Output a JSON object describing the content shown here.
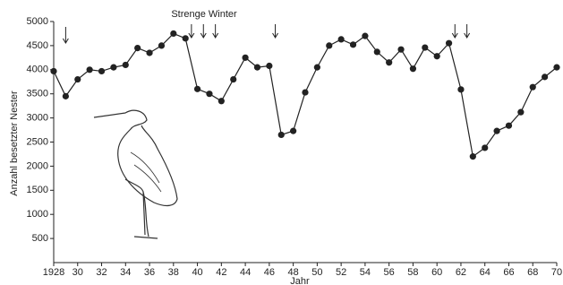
{
  "chart_data": {
    "type": "line",
    "annotation": "Strenge Winter",
    "hard_winters": [
      1929,
      1939.5,
      1940.5,
      1941.5,
      1946.5,
      1961.5,
      1962.5
    ],
    "x_label": "Jahr",
    "y_label": "Anzahl besetzter Nester",
    "x": [
      1928,
      1929,
      1930,
      1931,
      1932,
      1933,
      1934,
      1935,
      1936,
      1937,
      1938,
      1939,
      1940,
      1941,
      1942,
      1943,
      1944,
      1945,
      1946,
      1947,
      1948,
      1949,
      1950,
      1951,
      1952,
      1953,
      1954,
      1955,
      1956,
      1957,
      1958,
      1959,
      1960,
      1961,
      1962,
      1963,
      1964,
      1965,
      1966,
      1967,
      1968,
      1969,
      1970
    ],
    "values": [
      3970,
      3450,
      3800,
      4000,
      3970,
      4050,
      4100,
      4450,
      4350,
      4500,
      4750,
      4650,
      3600,
      3500,
      3350,
      3800,
      4250,
      4050,
      4080,
      2650,
      2730,
      3530,
      4050,
      4500,
      4630,
      4520,
      4700,
      4370,
      4150,
      4420,
      4020,
      4460,
      4280,
      4550,
      3590,
      2200,
      2380,
      2730,
      2840,
      3120,
      3640,
      3850,
      4050
    ],
    "color": "#222222",
    "xlim": [
      1928,
      1970
    ],
    "ylim": [
      0,
      5000
    ],
    "xticks": [
      1928,
      {
        "value": 1930,
        "label": "30"
      },
      {
        "value": 1932,
        "label": "32"
      },
      {
        "value": 1934,
        "label": "34"
      },
      {
        "value": 1936,
        "label": "36"
      },
      {
        "value": 1938,
        "label": "38"
      },
      {
        "value": 1940,
        "label": "40"
      },
      {
        "value": 1942,
        "label": "42"
      },
      {
        "value": 1944,
        "label": "44"
      },
      {
        "value": 1946,
        "label": "46"
      },
      {
        "value": 1948,
        "label": "48"
      },
      {
        "value": 1950,
        "label": "50"
      },
      {
        "value": 1952,
        "label": "52"
      },
      {
        "value": 1954,
        "label": "54"
      },
      {
        "value": 1956,
        "label": "56"
      },
      {
        "value": 1958,
        "label": "58"
      },
      {
        "value": 1960,
        "label": "60"
      },
      {
        "value": 1962,
        "label": "62"
      },
      {
        "value": 1964,
        "label": "64"
      },
      {
        "value": 1966,
        "label": "66"
      },
      {
        "value": 1968,
        "label": "68"
      },
      {
        "value": 1970,
        "label": "70"
      }
    ],
    "yticks": [
      500,
      1000,
      1500,
      2000,
      2500,
      3000,
      3500,
      4000,
      4500,
      5000
    ]
  }
}
